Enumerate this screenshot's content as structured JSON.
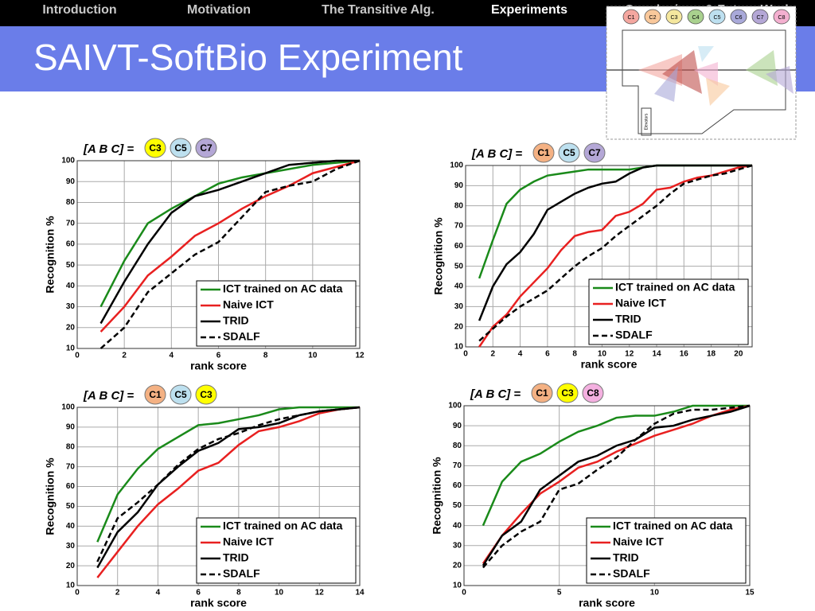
{
  "nav": [
    "Introduction",
    "Motivation",
    "The Transitive Alg.",
    "Experiments",
    "Conclusions & Future Work"
  ],
  "nav_active": 3,
  "title": "SAIVT-SoftBio Experiment",
  "diagram": {
    "cameras": [
      {
        "label": "C1",
        "color": "#f4a7a0"
      },
      {
        "label": "C2",
        "color": "#f9c89b"
      },
      {
        "label": "C3",
        "color": "#f5e79e"
      },
      {
        "label": "C4",
        "color": "#a9d18e"
      },
      {
        "label": "C5",
        "color": "#bde0f0"
      },
      {
        "label": "C6",
        "color": "#a9a9d9"
      },
      {
        "label": "C7",
        "color": "#b4a7d6"
      },
      {
        "label": "C8",
        "color": "#f4b0d0"
      }
    ],
    "room_label": "Elevators"
  },
  "chart_data": [
    {
      "type": "line",
      "set_label": "[A B C] =",
      "cameras": [
        {
          "name": "C3",
          "color": "#ffff00"
        },
        {
          "name": "C5",
          "color": "#bde0ef"
        },
        {
          "name": "C7",
          "color": "#b4a7d6"
        }
      ],
      "x_label": "rank score",
      "y_label": "Recognition %",
      "x": [
        1,
        2,
        3,
        4,
        5,
        6,
        7,
        8,
        9,
        10,
        11,
        12
      ],
      "xlim": [
        0,
        12
      ],
      "xticks": [
        0,
        2,
        4,
        6,
        8,
        10,
        12
      ],
      "ylim": [
        10,
        100
      ],
      "yticks": [
        10,
        20,
        30,
        40,
        50,
        60,
        70,
        80,
        90,
        100
      ],
      "grid": true,
      "legend": "lower right",
      "series": [
        {
          "name": "ICT trained on AC data",
          "color": "#1a8a1a",
          "values": [
            30,
            52,
            70,
            77,
            83,
            89,
            92,
            94,
            96,
            98,
            99,
            100
          ]
        },
        {
          "name": "Naive ICT",
          "color": "#e82020",
          "values": [
            18,
            30,
            45,
            54,
            64,
            70,
            77,
            83,
            88,
            94,
            97,
            100
          ]
        },
        {
          "name": "TRID",
          "color": "#000000",
          "values": [
            22,
            42,
            60,
            75,
            83,
            86,
            90,
            94,
            98,
            99,
            100,
            100
          ]
        },
        {
          "name": "SDALF",
          "color": "#000000",
          "dashed": true,
          "values": [
            10,
            20,
            37,
            46,
            55,
            61,
            73,
            85,
            88,
            90,
            96,
            100
          ]
        }
      ]
    },
    {
      "type": "line",
      "set_label": "[A B C] =",
      "cameras": [
        {
          "name": "C1",
          "color": "#f4b183"
        },
        {
          "name": "C5",
          "color": "#bde0ef"
        },
        {
          "name": "C7",
          "color": "#b4a7d6"
        }
      ],
      "x_label": "rank score",
      "y_label": "Recognition %",
      "x": [
        1,
        2,
        3,
        4,
        5,
        6,
        7,
        8,
        9,
        10,
        11,
        12,
        13,
        14,
        15,
        16,
        17,
        18,
        19,
        20,
        21
      ],
      "xlim": [
        0,
        21
      ],
      "xticks": [
        0,
        2,
        4,
        6,
        8,
        10,
        12,
        14,
        16,
        18,
        20
      ],
      "ylim": [
        10,
        100
      ],
      "yticks": [
        10,
        20,
        30,
        40,
        50,
        60,
        70,
        80,
        90,
        100
      ],
      "grid": true,
      "legend": "lower right",
      "series": [
        {
          "name": "ICT trained on AC data",
          "color": "#1a8a1a",
          "values": [
            44,
            63,
            81,
            88,
            92,
            95,
            96,
            97,
            98,
            98,
            98,
            98,
            99,
            100,
            100,
            100,
            100,
            100,
            100,
            100,
            100
          ]
        },
        {
          "name": "Naive ICT",
          "color": "#e82020",
          "values": [
            10,
            20,
            26,
            35,
            42,
            49,
            58,
            65,
            67,
            68,
            75,
            77,
            81,
            88,
            89,
            92,
            94,
            95,
            97,
            99,
            100
          ]
        },
        {
          "name": "TRID",
          "color": "#000000",
          "values": [
            23,
            40,
            51,
            57,
            66,
            78,
            82,
            86,
            89,
            91,
            92,
            96,
            99,
            100,
            100,
            100,
            100,
            100,
            100,
            100,
            100
          ]
        },
        {
          "name": "SDALF",
          "color": "#000000",
          "dashed": true,
          "values": [
            13,
            19,
            25,
            30,
            34,
            38,
            44,
            50,
            55,
            59,
            65,
            70,
            75,
            80,
            86,
            91,
            93,
            95,
            96,
            98,
            100
          ]
        }
      ]
    },
    {
      "type": "line",
      "set_label": "[A B C] =",
      "cameras": [
        {
          "name": "C1",
          "color": "#f4b183"
        },
        {
          "name": "C5",
          "color": "#bde0ef"
        },
        {
          "name": "C3",
          "color": "#ffff00"
        }
      ],
      "x_label": "rank score",
      "y_label": "Recognition %",
      "x": [
        1,
        2,
        3,
        4,
        5,
        6,
        7,
        8,
        9,
        10,
        11,
        12,
        13,
        14
      ],
      "xlim": [
        0,
        14
      ],
      "xticks": [
        0,
        2,
        4,
        6,
        8,
        10,
        12,
        14
      ],
      "ylim": [
        10,
        100
      ],
      "yticks": [
        10,
        20,
        30,
        40,
        50,
        60,
        70,
        80,
        90,
        100
      ],
      "grid": true,
      "legend": "lower right",
      "series": [
        {
          "name": "ICT trained on AC data",
          "color": "#1a8a1a",
          "values": [
            32,
            56,
            69,
            79,
            85,
            91,
            92,
            94,
            96,
            99,
            100,
            100,
            100,
            100
          ]
        },
        {
          "name": "Naive ICT",
          "color": "#e82020",
          "values": [
            14,
            27,
            40,
            51,
            59,
            68,
            72,
            81,
            88,
            90,
            93,
            97,
            99,
            100
          ]
        },
        {
          "name": "TRID",
          "color": "#000000",
          "values": [
            19,
            37,
            47,
            61,
            70,
            78,
            82,
            89,
            90,
            92,
            96,
            98,
            99,
            100
          ]
        },
        {
          "name": "SDALF",
          "color": "#000000",
          "dashed": true,
          "values": [
            22,
            44,
            52,
            61,
            71,
            79,
            84,
            87,
            91,
            94,
            96,
            98,
            99,
            100
          ]
        }
      ]
    },
    {
      "type": "line",
      "set_label": "[A B C] =",
      "cameras": [
        {
          "name": "C1",
          "color": "#f4b183"
        },
        {
          "name": "C3",
          "color": "#ffff00"
        },
        {
          "name": "C8",
          "color": "#f4b0e0"
        }
      ],
      "x_label": "rank score",
      "y_label": "Recognition %",
      "x": [
        1,
        2,
        3,
        4,
        5,
        6,
        7,
        8,
        9,
        10,
        11,
        12,
        13,
        14,
        15
      ],
      "xlim": [
        0,
        15
      ],
      "xticks": [
        0,
        5,
        10,
        15
      ],
      "ylim": [
        10,
        100
      ],
      "yticks": [
        10,
        20,
        30,
        40,
        50,
        60,
        70,
        80,
        90,
        100
      ],
      "grid": true,
      "legend": "lower right",
      "series": [
        {
          "name": "ICT trained on AC data",
          "color": "#1a8a1a",
          "values": [
            40,
            62,
            72,
            76,
            82,
            87,
            90,
            94,
            95,
            95,
            97,
            100,
            100,
            100,
            100
          ]
        },
        {
          "name": "Naive ICT",
          "color": "#e82020",
          "values": [
            21,
            35,
            46,
            56,
            62,
            69,
            72,
            77,
            81,
            85,
            88,
            91,
            95,
            98,
            100
          ]
        },
        {
          "name": "TRID",
          "color": "#000000",
          "values": [
            20,
            35,
            42,
            58,
            65,
            72,
            75,
            80,
            83,
            89,
            90,
            93,
            95,
            97,
            100
          ]
        },
        {
          "name": "SDALF",
          "color": "#000000",
          "dashed": true,
          "values": [
            19,
            30,
            37,
            42,
            58,
            61,
            68,
            74,
            83,
            91,
            96,
            98,
            98,
            99,
            100
          ]
        }
      ]
    }
  ]
}
